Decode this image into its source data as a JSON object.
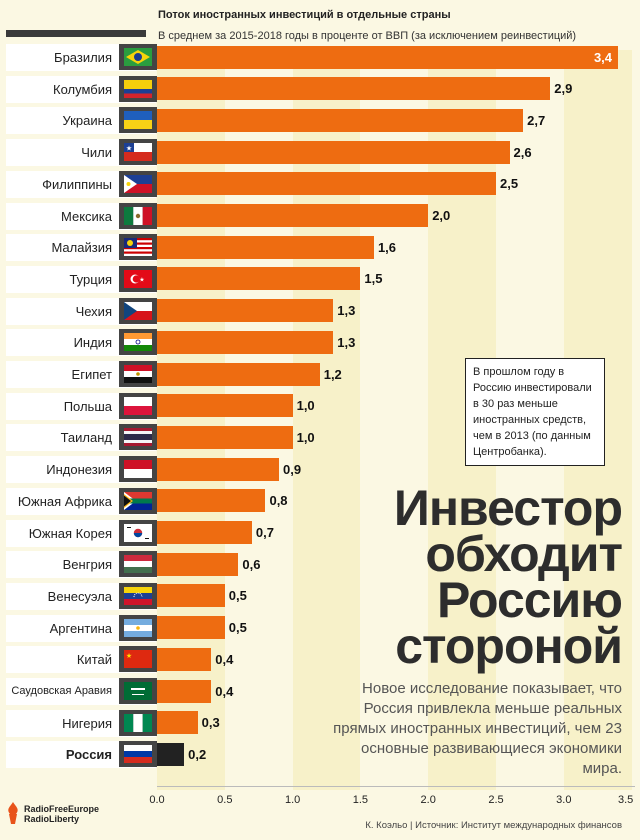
{
  "header": {
    "title": "Поток иностранных инвестиций в отдельные страны",
    "subtitle": "В среднем за 2015-2018 годы в проценте от ВВП (за исключением реинвестиций)"
  },
  "chart_data": {
    "type": "bar",
    "orientation": "horizontal",
    "title": "Поток иностранных инвестиций в отдельные страны",
    "subtitle": "В среднем за 2015-2018 годы в проценте от ВВП (за исключением реинвестиций)",
    "xlim": [
      0,
      3.5
    ],
    "ticks": [
      "0.0",
      "0.5",
      "1.0",
      "1.5",
      "2.0",
      "2.5",
      "3.0",
      "3.5"
    ],
    "tick_values": [
      0,
      0.5,
      1.0,
      1.5,
      2.0,
      2.5,
      3.0,
      3.5
    ],
    "grid": true,
    "categories": [
      "Бразилия",
      "Колумбия",
      "Украина",
      "Чили",
      "Филиппины",
      "Мексика",
      "Малайзия",
      "Турция",
      "Чехия",
      "Индия",
      "Египет",
      "Польша",
      "Таиланд",
      "Индонезия",
      "Южная Африка",
      "Южная Корея",
      "Венгрия",
      "Венесуэла",
      "Аргентина",
      "Китай",
      "Саудовская Аравия",
      "Нигерия",
      "Россия"
    ],
    "values": [
      3.4,
      2.9,
      2.7,
      2.6,
      2.5,
      2.0,
      1.6,
      1.5,
      1.3,
      1.3,
      1.2,
      1.0,
      1.0,
      0.9,
      0.8,
      0.7,
      0.6,
      0.5,
      0.5,
      0.4,
      0.4,
      0.3,
      0.2
    ],
    "value_labels": [
      "3,4",
      "2,9",
      "2,7",
      "2,6",
      "2,5",
      "2,0",
      "1,6",
      "1,5",
      "1,3",
      "1,3",
      "1,2",
      "1,0",
      "1,0",
      "0,9",
      "0,8",
      "0,7",
      "0,6",
      "0,5",
      "0,5",
      "0,4",
      "0,4",
      "0,3",
      "0,2"
    ],
    "highlight": "Россия",
    "bar_color": "#ee6c11",
    "highlight_color": "#222222"
  },
  "flags": [
    "flag-brazil-icon",
    "flag-colombia-icon",
    "flag-ukraine-icon",
    "flag-chile-icon",
    "flag-philippines-icon",
    "flag-mexico-icon",
    "flag-malaysia-icon",
    "flag-turkey-icon",
    "flag-czechia-icon",
    "flag-india-icon",
    "flag-egypt-icon",
    "flag-poland-icon",
    "flag-thailand-icon",
    "flag-indonesia-icon",
    "flag-south-africa-icon",
    "flag-south-korea-icon",
    "flag-hungary-icon",
    "flag-venezuela-icon",
    "flag-argentina-icon",
    "flag-china-icon",
    "flag-saudi-arabia-icon",
    "flag-nigeria-icon",
    "flag-russia-icon"
  ],
  "note": "В прошлом году в Россию инвестировали в 30 раз меньше иностранных средств, чем в 2013 (по данным Центробанка).",
  "headline": [
    "Инвестор",
    "обходит",
    "Россию",
    "стороной"
  ],
  "lede": "Новое исследование показывает, что Россия привлекла меньше реальных прямых иностранных инвестиций, чем 23 основные развивающиеся экономики мира.",
  "source": "К. Коэльо | Источник: Институт международных финансов",
  "logo": {
    "line1": "RadioFreeEurope",
    "line2": "RadioLiberty"
  }
}
